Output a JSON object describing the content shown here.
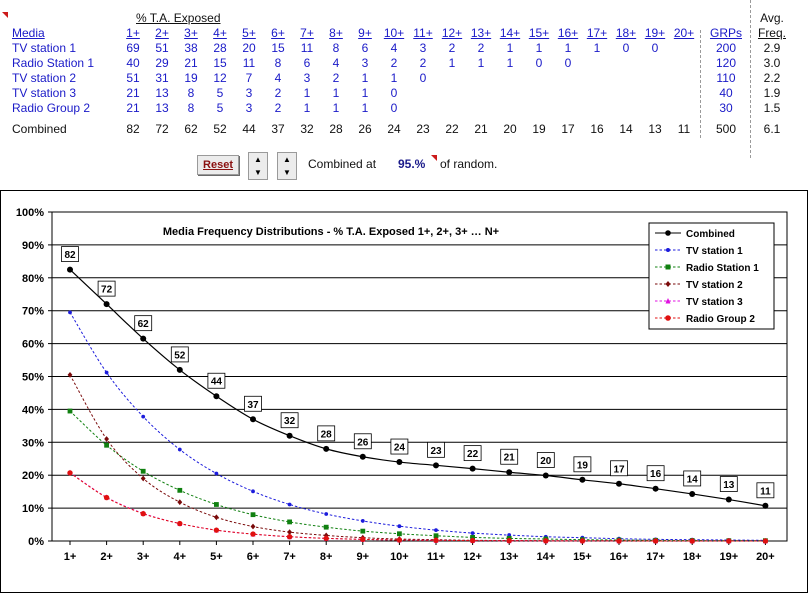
{
  "table": {
    "media_header": "Media",
    "pct_header": "% T.A. Exposed",
    "grps_header": "GRPs",
    "avg_header_1": "Avg.",
    "avg_header_2": "Freq.",
    "columns": [
      "1+",
      "2+",
      "3+",
      "4+",
      "5+",
      "6+",
      "7+",
      "8+",
      "9+",
      "10+",
      "11+",
      "12+",
      "13+",
      "14+",
      "15+",
      "16+",
      "17+",
      "18+",
      "19+",
      "20+"
    ],
    "rows": [
      {
        "name": "TV station 1",
        "values": [
          "69",
          "51",
          "38",
          "28",
          "20",
          "15",
          "11",
          "8",
          "6",
          "4",
          "3",
          "2",
          "2",
          "1",
          "1",
          "1",
          "1",
          "0",
          "0",
          ""
        ],
        "grps": "200",
        "avg": "2.9"
      },
      {
        "name": "Radio Station 1",
        "values": [
          "40",
          "29",
          "21",
          "15",
          "11",
          "8",
          "6",
          "4",
          "3",
          "2",
          "2",
          "1",
          "1",
          "1",
          "0",
          "0",
          "",
          "",
          "",
          ""
        ],
        "grps": "120",
        "avg": "3.0"
      },
      {
        "name": "TV station 2",
        "values": [
          "51",
          "31",
          "19",
          "12",
          "7",
          "4",
          "3",
          "2",
          "1",
          "1",
          "0",
          "",
          "",
          "",
          "",
          "",
          "",
          "",
          "",
          ""
        ],
        "grps": "110",
        "avg": "2.2"
      },
      {
        "name": "TV station 3",
        "values": [
          "21",
          "13",
          "8",
          "5",
          "3",
          "2",
          "1",
          "1",
          "1",
          "0",
          "",
          "",
          "",
          "",
          "",
          "",
          "",
          "",
          "",
          ""
        ],
        "grps": "40",
        "avg": "1.9"
      },
      {
        "name": "Radio Group 2",
        "values": [
          "21",
          "13",
          "8",
          "5",
          "3",
          "2",
          "1",
          "1",
          "1",
          "0",
          "",
          "",
          "",
          "",
          "",
          "",
          "",
          "",
          "",
          ""
        ],
        "grps": "30",
        "avg": "1.5"
      }
    ],
    "combined": {
      "name": "Combined",
      "values": [
        "82",
        "72",
        "62",
        "52",
        "44",
        "37",
        "32",
        "28",
        "26",
        "24",
        "23",
        "22",
        "21",
        "20",
        "19",
        "17",
        "16",
        "14",
        "13",
        "11"
      ],
      "grps": "500",
      "avg": "6.1"
    }
  },
  "controls": {
    "reset_label": "Reset",
    "up_arrow": "▲",
    "down_arrow": "▼",
    "combined_at_label": "Combined at",
    "combined_at_value": "95.%",
    "of_random_label": "of random."
  },
  "colors": {
    "combined": "#000000",
    "tv_station_1": "#1c1cdc",
    "radio_station_1": "#108010",
    "tv_station_2": "#7a0a0a",
    "tv_station_3": "#e010e0",
    "radio_group_2": "#e01010"
  },
  "chart_data": {
    "type": "line",
    "title": "Media Frequency Distributions  - % T.A. Exposed 1+, 2+, 3+ … N+",
    "categories": [
      "1+",
      "2+",
      "3+",
      "4+",
      "5+",
      "6+",
      "7+",
      "8+",
      "9+",
      "10+",
      "11+",
      "12+",
      "13+",
      "14+",
      "15+",
      "16+",
      "17+",
      "18+",
      "19+",
      "20+"
    ],
    "ylim": [
      0,
      100
    ],
    "yticks": [
      "0%",
      "10%",
      "20%",
      "30%",
      "40%",
      "50%",
      "60%",
      "70%",
      "80%",
      "90%",
      "100%"
    ],
    "xlabel": "",
    "ylabel": "",
    "grid": true,
    "legend": "top-right",
    "series": [
      {
        "name": "Combined",
        "key": "combined",
        "marker": "circle",
        "dash": false,
        "values": [
          82.5,
          72,
          61.5,
          52,
          44,
          37,
          32,
          28,
          25.6,
          24,
          23,
          22,
          20.9,
          19.9,
          18.6,
          17.4,
          15.9,
          14.3,
          12.6,
          10.7
        ],
        "labels": [
          "82",
          "72",
          "62",
          "52",
          "44",
          "37",
          "32",
          "28",
          "26",
          "24",
          "23",
          "22",
          "21",
          "20",
          "19",
          "17",
          "16",
          "14",
          "13",
          "11"
        ]
      },
      {
        "name": "TV station 1",
        "key": "tv_station_1",
        "marker": "dot",
        "dash": true,
        "values": [
          69.5,
          51.2,
          37.8,
          27.8,
          20.5,
          15.1,
          11.1,
          8.2,
          6.1,
          4.5,
          3.3,
          2.4,
          1.8,
          1.3,
          1.0,
          0.7,
          0.5,
          0.4,
          0.3,
          0.2
        ]
      },
      {
        "name": "Radio Station 1",
        "key": "radio_station_1",
        "marker": "square",
        "dash": true,
        "values": [
          39.5,
          29.1,
          21.2,
          15.4,
          11.1,
          8,
          5.8,
          4.2,
          3,
          2.2,
          1.6,
          1.1,
          0.8,
          0.6,
          0.4,
          0.3,
          0.2,
          0.15,
          0.1,
          0.1
        ]
      },
      {
        "name": "TV station 2",
        "key": "tv_station_2",
        "marker": "diamond",
        "dash": true,
        "values": [
          50.5,
          31,
          19,
          11.8,
          7.2,
          4.4,
          2.7,
          1.7,
          1,
          0.6,
          0.4,
          0.2,
          0.15,
          0.1,
          0.05,
          0.03,
          0.02,
          0.01,
          0,
          0
        ]
      },
      {
        "name": "TV station 3",
        "key": "tv_station_3",
        "marker": "triangle",
        "dash": true,
        "values": [
          20.8,
          13.3,
          8.4,
          5.3,
          3.3,
          2.1,
          1.3,
          0.8,
          0.5,
          0.3,
          0.2,
          0.13,
          0.08,
          0.05,
          0.03,
          0.02,
          0.01,
          0,
          0,
          0
        ]
      },
      {
        "name": "Radio Group 2",
        "key": "radio_group_2",
        "marker": "circle",
        "dash": true,
        "values": [
          20.7,
          13.2,
          8.3,
          5.3,
          3.3,
          2.1,
          1.3,
          0.8,
          0.5,
          0.3,
          0.2,
          0.13,
          0.08,
          0.05,
          0.03,
          0.02,
          0.01,
          0,
          0,
          0
        ]
      }
    ]
  }
}
